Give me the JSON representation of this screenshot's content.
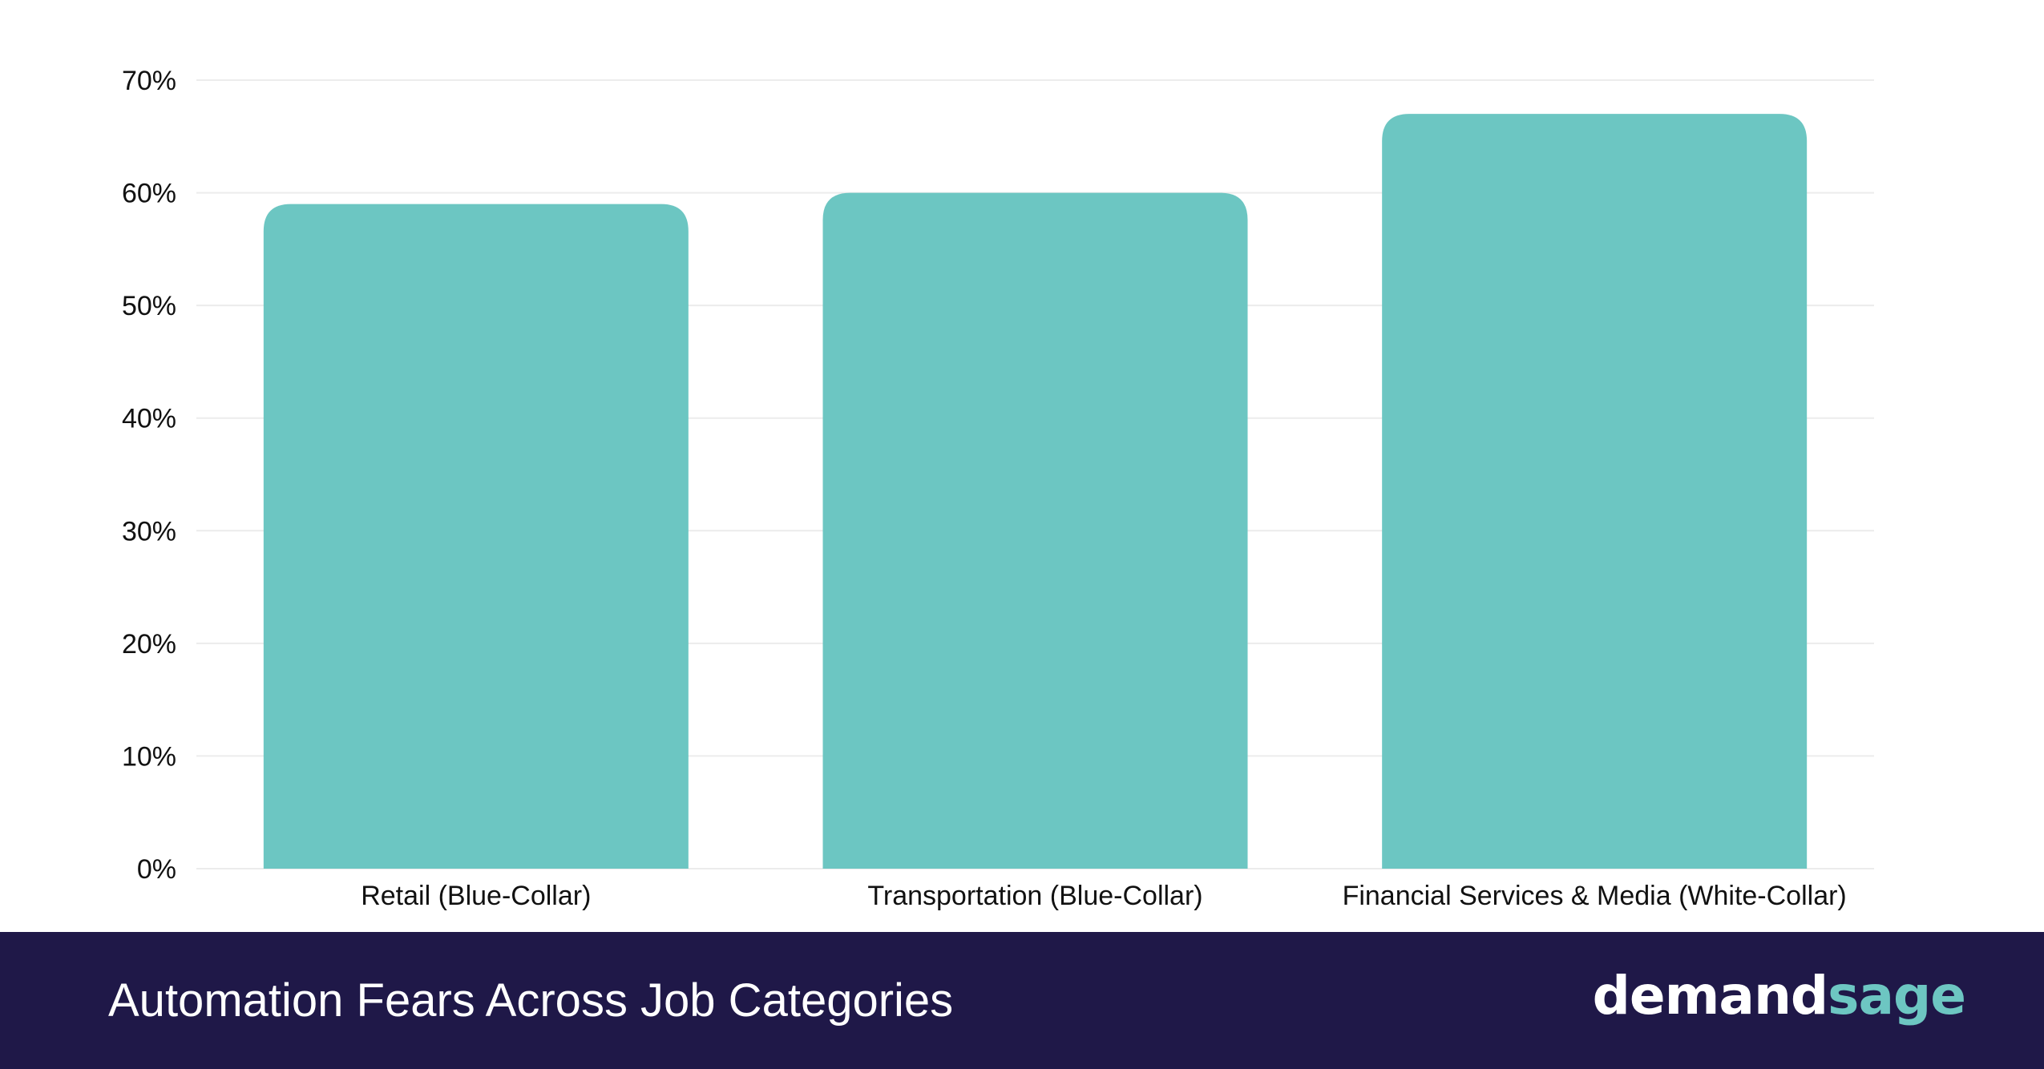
{
  "chart_data": {
    "type": "bar",
    "title": "Automation Fears Across Job Categories",
    "categories": [
      "Retail (Blue-Collar)",
      "Transportation (Blue-Collar)",
      "Financial Services & Media (White-Collar)"
    ],
    "values": [
      59,
      60,
      67
    ],
    "ylim": [
      0,
      70
    ],
    "yticks": [
      "0%",
      "10%",
      "20%",
      "30%",
      "40%",
      "50%",
      "60%",
      "70%"
    ],
    "xlabel": "",
    "ylabel": "",
    "grid": true,
    "bar_color": "#6cc6c2",
    "grid_color": "#ececec"
  },
  "footer": {
    "title": "Automation Fears Across Job Categories",
    "background_color": "#1f1848"
  },
  "brand": {
    "part1": "demand",
    "part2": "sage",
    "part1_color": "#ffffff",
    "part2_color": "#6dc6c2"
  }
}
